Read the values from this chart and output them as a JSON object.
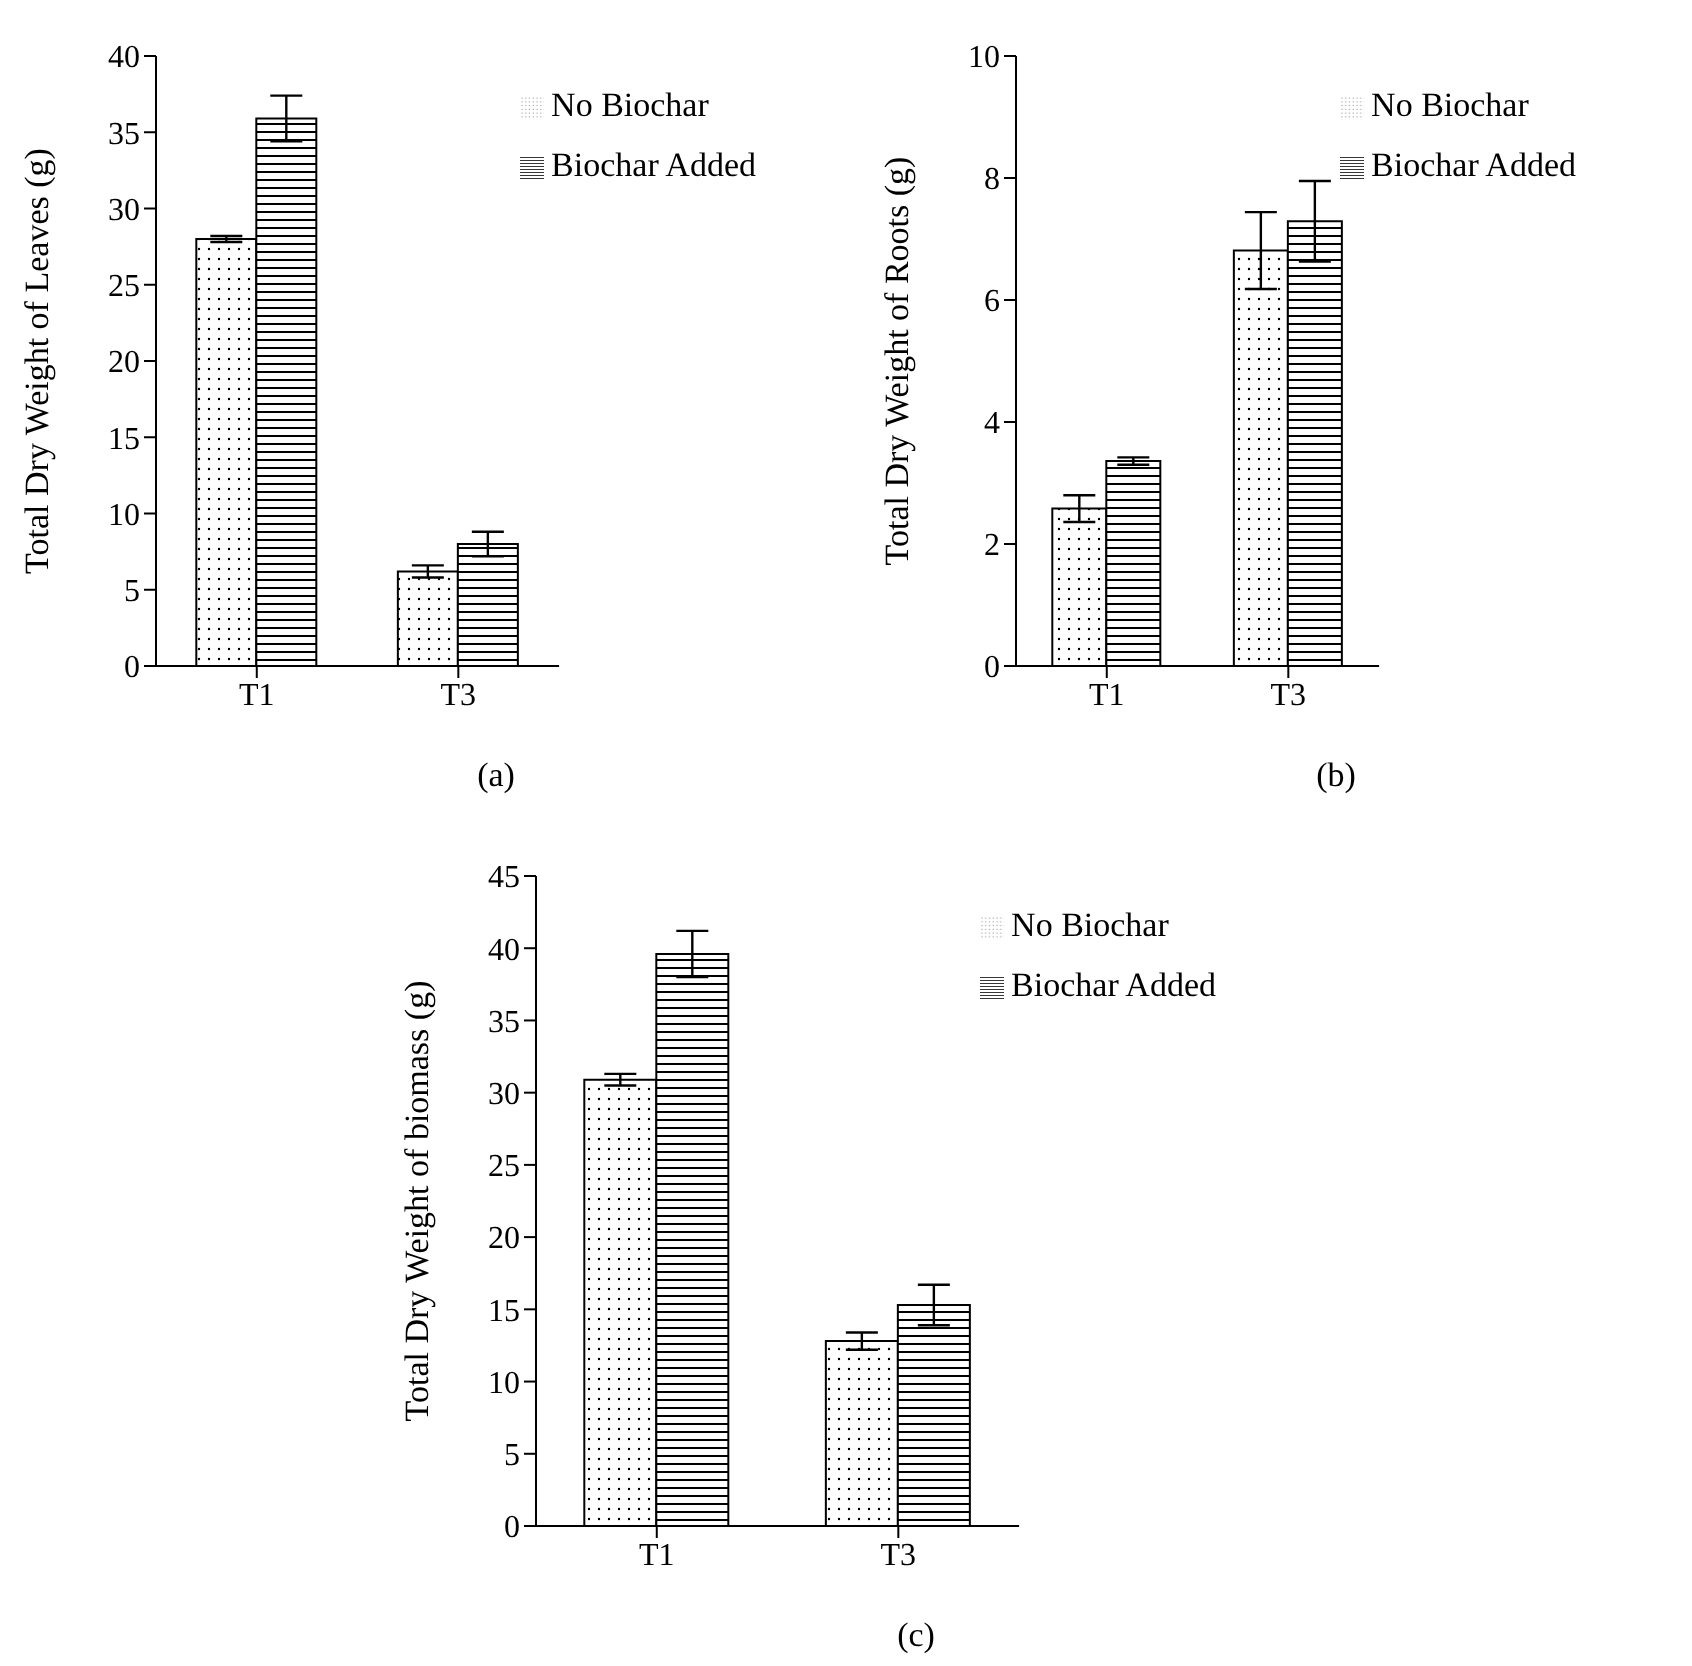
{
  "chart_data": [
    {
      "type": "bar",
      "categories": [
        "T1",
        "T3"
      ],
      "ylabel": "Total Dry Weight of Leaves (g)",
      "ylim": [
        0,
        40
      ],
      "yticks": [
        0,
        5,
        10,
        15,
        20,
        25,
        30,
        35,
        40
      ],
      "legend": "top right",
      "annotations": [
        "(a)"
      ],
      "series": [
        {
          "name": "No Biochar",
          "color": "#000000",
          "values": [
            28.0,
            6.2
          ],
          "errors": [
            0.2,
            0.4
          ]
        },
        {
          "name": "Biochar Added",
          "color": "#000000",
          "values": [
            35.9,
            8.0
          ],
          "errors": [
            1.5,
            0.8
          ]
        }
      ]
    },
    {
      "type": "bar",
      "categories": [
        "T1",
        "T3"
      ],
      "ylabel": "Total Dry Weight of Roots (g)",
      "ylim": [
        0,
        10
      ],
      "yticks": [
        0,
        2,
        4,
        6,
        8,
        10
      ],
      "legend": "top right",
      "annotations": [
        "(b)"
      ],
      "series": [
        {
          "name": "No Biochar",
          "color": "#000000",
          "values": [
            2.58,
            6.81
          ],
          "errors": [
            0.22,
            0.63
          ]
        },
        {
          "name": "Biochar Added",
          "color": "#000000",
          "values": [
            3.36,
            7.29
          ],
          "errors": [
            0.06,
            0.66
          ]
        }
      ]
    },
    {
      "type": "bar",
      "categories": [
        "T1",
        "T3"
      ],
      "ylabel": "Total Dry Weight of biomass (g)",
      "ylim": [
        0,
        45
      ],
      "yticks": [
        0,
        5,
        10,
        15,
        20,
        25,
        30,
        35,
        40,
        45
      ],
      "legend": "top right",
      "annotations": [
        "(c)"
      ],
      "series": [
        {
          "name": "No Biochar",
          "color": "#000000",
          "values": [
            30.9,
            12.8
          ],
          "errors": [
            0.4,
            0.6
          ]
        },
        {
          "name": "Biochar Added",
          "color": "#000000",
          "values": [
            39.6,
            15.3
          ],
          "errors": [
            1.6,
            1.4
          ]
        }
      ]
    }
  ]
}
